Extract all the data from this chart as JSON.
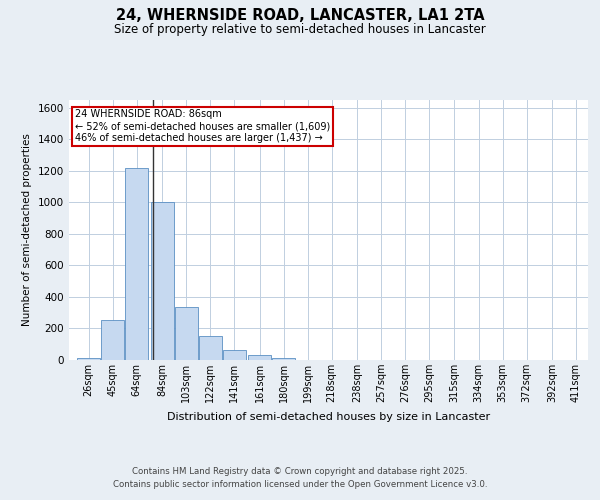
{
  "title": "24, WHERNSIDE ROAD, LANCASTER, LA1 2TA",
  "subtitle": "Size of property relative to semi-detached houses in Lancaster",
  "xlabel": "Distribution of semi-detached houses by size in Lancaster",
  "ylabel": "Number of semi-detached properties",
  "property_label": "24 WHERNSIDE ROAD: 86sqm",
  "annotation_line1": "← 52% of semi-detached houses are smaller (1,609)",
  "annotation_line2": "46% of semi-detached houses are larger (1,437) →",
  "property_size": 86,
  "bar_categories": [
    "26sqm",
    "45sqm",
    "64sqm",
    "84sqm",
    "103sqm",
    "122sqm",
    "141sqm",
    "161sqm",
    "180sqm",
    "199sqm",
    "218sqm",
    "238sqm",
    "257sqm",
    "276sqm",
    "295sqm",
    "315sqm",
    "334sqm",
    "353sqm",
    "372sqm",
    "392sqm",
    "411sqm"
  ],
  "bar_left_edges": [
    26,
    45,
    64,
    84,
    103,
    122,
    141,
    161,
    180,
    199,
    218,
    238,
    257,
    276,
    295,
    315,
    334,
    353,
    372,
    392,
    411
  ],
  "bar_widths": [
    19,
    19,
    19,
    19,
    19,
    19,
    19,
    19,
    19,
    19,
    19,
    19,
    19,
    19,
    19,
    19,
    19,
    19,
    19,
    19,
    19
  ],
  "bar_heights": [
    15,
    255,
    1220,
    1005,
    335,
    155,
    65,
    30,
    10,
    3,
    0,
    0,
    0,
    0,
    0,
    0,
    0,
    0,
    0,
    0,
    0
  ],
  "bar_color": "#c6d9f0",
  "bar_edgecolor": "#5a8fc3",
  "annotation_box_edgecolor": "#cc0000",
  "annotation_box_facecolor": "#ffffff",
  "property_line_color": "#333333",
  "ylim": [
    0,
    1650
  ],
  "xlim": [
    20,
    430
  ],
  "yticks": [
    0,
    200,
    400,
    600,
    800,
    1000,
    1200,
    1400,
    1600
  ],
  "footer_line1": "Contains HM Land Registry data © Crown copyright and database right 2025.",
  "footer_line2": "Contains public sector information licensed under the Open Government Licence v3.0.",
  "background_color": "#e8eef4",
  "plot_background_color": "#ffffff"
}
